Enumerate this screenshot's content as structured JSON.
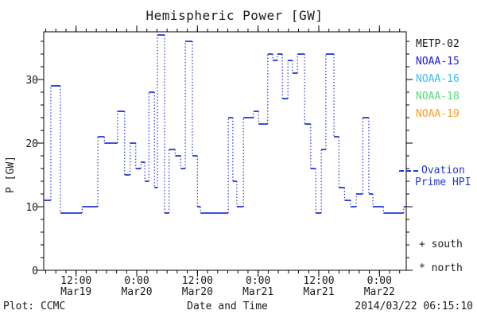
{
  "title": "Hemispheric Power [GW]",
  "axes": {
    "ylabel": "P [GW]",
    "xlabel": "Date and Time"
  },
  "footer": {
    "left": "Plot: CCMC",
    "right": "2014/03/22 06:15:10"
  },
  "legend": {
    "satellites": [
      {
        "label": "METP-02",
        "color": "#1a1a1a"
      },
      {
        "label": "NOAA-15",
        "color": "#1c1ce0"
      },
      {
        "label": "NOAA-16",
        "color": "#3dbdf2"
      },
      {
        "label": "NOAA-18",
        "color": "#55de7d"
      },
      {
        "label": "NOAA-19",
        "color": "#ff9d26"
      }
    ],
    "line_sample": {
      "label_line1": "Ovation",
      "label_line2": "Prime HPI",
      "color": "#2236dd"
    },
    "south": "+ south",
    "north": "* north"
  },
  "colors": {
    "line": "#2236dd",
    "axis": "#000000",
    "background": "#ffffff"
  },
  "chart_data": {
    "type": "line",
    "step_mode": "post",
    "title": "Hemispheric Power [GW]",
    "xlabel": "Date and Time",
    "ylabel": "P [GW]",
    "x_unit": "hours since 2014-03-19 00:00",
    "xlim": [
      5.6,
      77.3
    ],
    "ylim": [
      0,
      37.5
    ],
    "grid": false,
    "legend_position": "right",
    "x_major_ticks": [
      {
        "t": 12,
        "time": "12:00",
        "date": "Mar19"
      },
      {
        "t": 24,
        "time": "0:00",
        "date": "Mar20"
      },
      {
        "t": 36,
        "time": "12:00",
        "date": "Mar20"
      },
      {
        "t": 48,
        "time": "0:00",
        "date": "Mar21"
      },
      {
        "t": 60,
        "time": "12:00",
        "date": "Mar21"
      },
      {
        "t": 72,
        "time": "0:00",
        "date": "Mar22"
      }
    ],
    "x_minor_step": 2,
    "y_major_ticks": [
      0,
      10,
      20,
      30
    ],
    "y_minor_step": 2,
    "x_end": 77.3,
    "steps": [
      [
        5.6,
        11
      ],
      [
        7.0,
        29
      ],
      [
        8.9,
        9
      ],
      [
        13.2,
        10
      ],
      [
        16.3,
        21
      ],
      [
        17.6,
        20
      ],
      [
        20.2,
        25
      ],
      [
        21.6,
        15
      ],
      [
        22.7,
        20
      ],
      [
        23.8,
        16
      ],
      [
        24.8,
        17
      ],
      [
        25.6,
        14
      ],
      [
        26.4,
        28
      ],
      [
        27.5,
        13
      ],
      [
        28.1,
        37
      ],
      [
        29.5,
        9
      ],
      [
        30.4,
        19
      ],
      [
        31.6,
        18
      ],
      [
        32.7,
        16
      ],
      [
        33.6,
        36
      ],
      [
        35.0,
        18
      ],
      [
        36.0,
        10
      ],
      [
        36.6,
        9
      ],
      [
        42.1,
        24
      ],
      [
        43.0,
        14
      ],
      [
        43.8,
        10
      ],
      [
        45.1,
        24
      ],
      [
        47.1,
        25
      ],
      [
        48.1,
        23
      ],
      [
        49.9,
        34
      ],
      [
        50.9,
        33
      ],
      [
        51.8,
        34
      ],
      [
        52.8,
        27
      ],
      [
        53.9,
        33
      ],
      [
        54.8,
        31
      ],
      [
        55.8,
        34
      ],
      [
        57.2,
        23
      ],
      [
        58.4,
        16
      ],
      [
        59.4,
        9
      ],
      [
        60.5,
        19
      ],
      [
        61.4,
        34
      ],
      [
        63.0,
        21
      ],
      [
        64.0,
        13
      ],
      [
        65.1,
        11
      ],
      [
        66.3,
        10
      ],
      [
        67.4,
        12
      ],
      [
        68.7,
        24
      ],
      [
        69.9,
        12
      ],
      [
        70.7,
        10
      ],
      [
        72.8,
        9
      ],
      [
        76.8,
        10
      ]
    ]
  }
}
